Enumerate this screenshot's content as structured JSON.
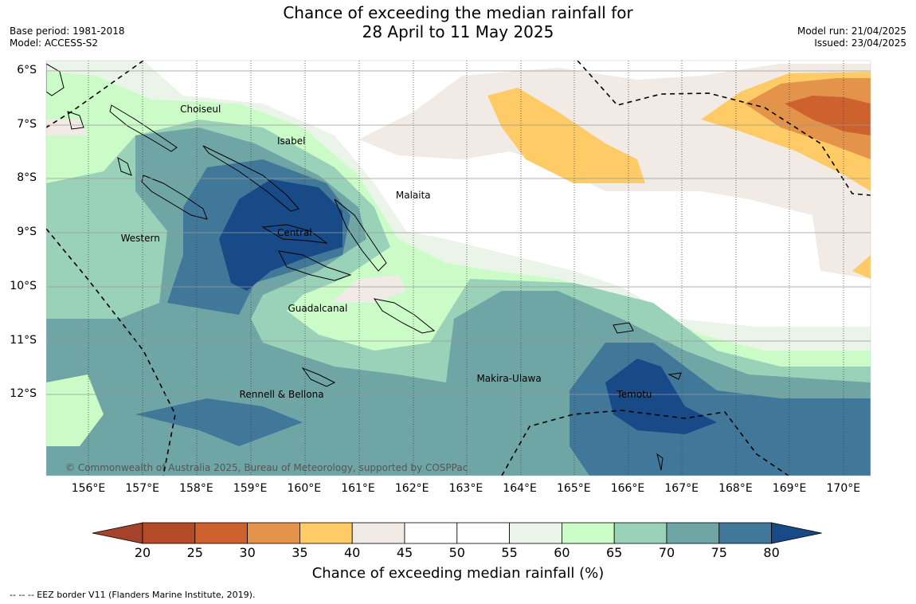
{
  "title": {
    "line1": "Chance of exceeding the median rainfall for",
    "line2": "28 April to 11 May 2025"
  },
  "meta_left": {
    "base_period": "Base period: 1981-2018",
    "model": "Model: ACCESS-S2"
  },
  "meta_right": {
    "model_run": "Model run: 21/04/2025",
    "issued": "Issued: 23/04/2025"
  },
  "latitudes": [
    "6°S",
    "7°S",
    "8°S",
    "9°S",
    "10°S",
    "11°S",
    "12°S"
  ],
  "longitudes": [
    "156°E",
    "157°E",
    "158°E",
    "159°E",
    "160°E",
    "161°E",
    "162°E",
    "163°E",
    "164°E",
    "165°E",
    "166°E",
    "167°E",
    "168°E",
    "169°E",
    "170°E"
  ],
  "places": [
    {
      "name": "Choiseul",
      "lon": 157.7,
      "lat": -6.6
    },
    {
      "name": "Isabel",
      "lon": 159.5,
      "lat": -7.2
    },
    {
      "name": "Malaita",
      "lon": 161.7,
      "lat": -8.2
    },
    {
      "name": "Western",
      "lon": 156.6,
      "lat": -9.0
    },
    {
      "name": "Central",
      "lon": 159.5,
      "lat": -8.9
    },
    {
      "name": "Guadalcanal",
      "lon": 159.7,
      "lat": -10.3
    },
    {
      "name": "Makira-Ulawa",
      "lon": 163.2,
      "lat": -11.6
    },
    {
      "name": "Rennell & Bellona",
      "lon": 158.8,
      "lat": -11.9
    },
    {
      "name": "Temotu",
      "lon": 165.8,
      "lat": -11.9
    }
  ],
  "copyright": "© Commonwealth of Australia 2025, Bureau of Meteorology, supported by COSPPac",
  "colorbar": {
    "title": "Chance of exceeding median rainfall (%)",
    "ticks": [
      "20",
      "25",
      "30",
      "35",
      "40",
      "45",
      "50",
      "55",
      "60",
      "65",
      "70",
      "75",
      "80"
    ],
    "colors": [
      "#a4422a",
      "#b34a28",
      "#cd622f",
      "#e3934a",
      "#fecb66",
      "#f2ebe5",
      "#ffffff",
      "#ffffff",
      "#eaf4e8",
      "#cbfbc6",
      "#9ad1b9",
      "#6fa5a5",
      "#41789a",
      "#174a87"
    ]
  },
  "footnote": "--  --  -- EEZ border V11 (Flanders Marine Institute, 2019)."
}
